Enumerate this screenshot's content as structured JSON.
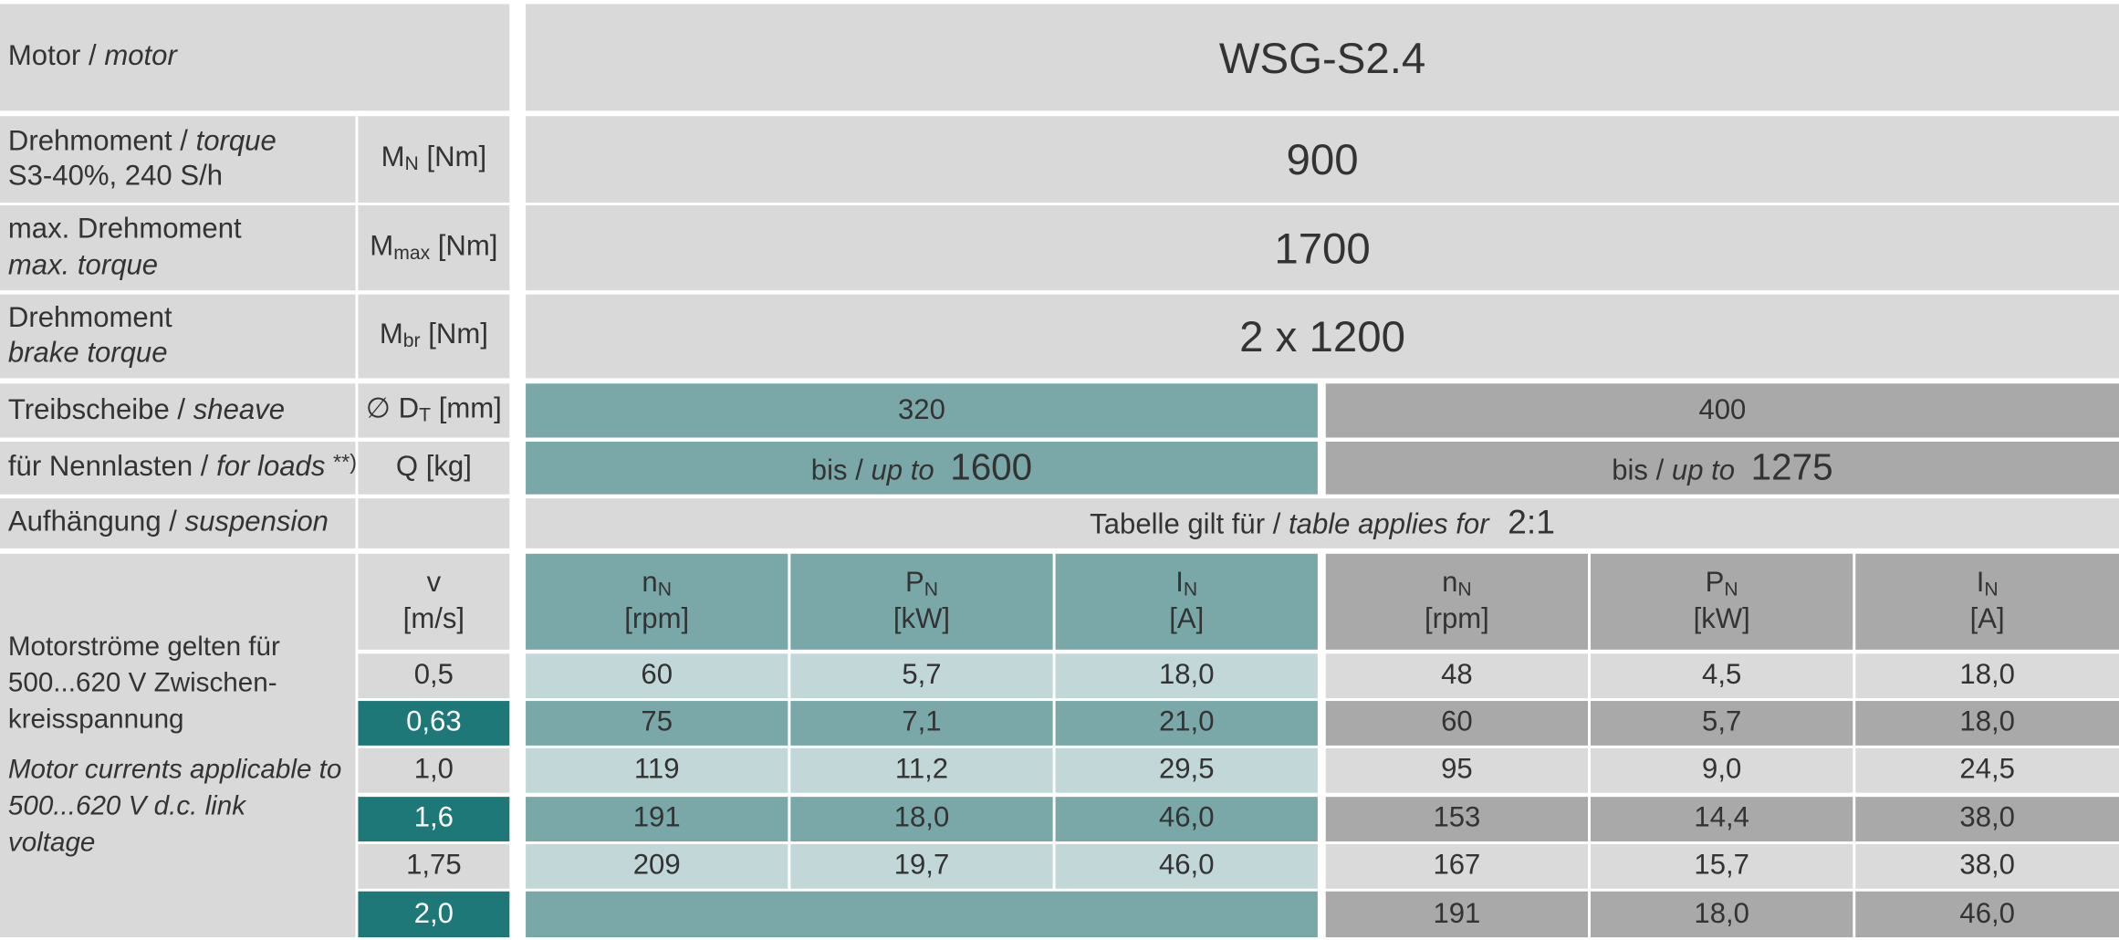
{
  "header": {
    "label_de": "Motor /",
    "label_en": "motor",
    "value": "WSG-S2.4"
  },
  "specs": [
    {
      "label_de": "Drehmoment /",
      "label_en": "torque",
      "label_note": "S3-40%, 240 S/h",
      "symbol": "M",
      "sub": "N",
      "unit": "[Nm]",
      "value": "900"
    },
    {
      "label_de": "max. Drehmoment",
      "label_en": "max. torque",
      "symbol": "M",
      "sub": "max",
      "unit": "[Nm]",
      "value": "1700"
    },
    {
      "label_de": "Drehmoment",
      "label_en": "brake torque",
      "symbol": "M",
      "sub": "br",
      "unit": "[Nm]",
      "value": "2 x 1200"
    }
  ],
  "sheave": {
    "label_de": "Treibscheibe /",
    "label_en": "sheave",
    "symbol": "∅ D",
    "sub": "T",
    "unit": "[mm]",
    "values": [
      "320",
      "400"
    ]
  },
  "loads": {
    "label_de": "für Nennlasten /",
    "label_en": "for loads",
    "note": "**)",
    "unit": "Q [kg]",
    "prefix_de": "bis /",
    "prefix_en": "up to",
    "values": [
      "1600",
      "1275"
    ]
  },
  "suspension": {
    "label_de": "Aufhängung /",
    "label_en": "suspension",
    "text_de": "Tabelle gilt für /",
    "text_en": "table applies for",
    "value": "2:1"
  },
  "performance": {
    "note_de": [
      "Motorströme gelten für",
      "500...620 V Zwischen-",
      "kreisspannung"
    ],
    "note_en": [
      "Motor currents applicable to",
      "500...620 V d.c. link",
      "voltage"
    ],
    "speed_header": {
      "symbol": "v",
      "unit": "[m/s]"
    },
    "columns": [
      {
        "symbol": "n",
        "sub": "N",
        "unit": "[rpm]"
      },
      {
        "symbol": "P",
        "sub": "N",
        "unit": "[kW]"
      },
      {
        "symbol": "I",
        "sub": "N",
        "unit": "[A]"
      }
    ],
    "rows": [
      {
        "v": "0,5",
        "d320": [
          "60",
          "5,7",
          "18,0"
        ],
        "d400": [
          "48",
          "4,5",
          "18,0"
        ]
      },
      {
        "v": "0,63",
        "d320": [
          "75",
          "7,1",
          "21,0"
        ],
        "d400": [
          "60",
          "5,7",
          "18,0"
        ]
      },
      {
        "v": "1,0",
        "d320": [
          "119",
          "11,2",
          "29,5"
        ],
        "d400": [
          "95",
          "9,0",
          "24,5"
        ]
      },
      {
        "v": "1,6",
        "d320": [
          "191",
          "18,0",
          "46,0"
        ],
        "d400": [
          "153",
          "14,4",
          "38,0"
        ]
      },
      {
        "v": "1,75",
        "d320": [
          "209",
          "19,7",
          "46,0"
        ],
        "d400": [
          "167",
          "15,7",
          "38,0"
        ]
      },
      {
        "v": "2,0",
        "d320": null,
        "d400": [
          "191",
          "18,0",
          "46,0"
        ]
      }
    ]
  }
}
